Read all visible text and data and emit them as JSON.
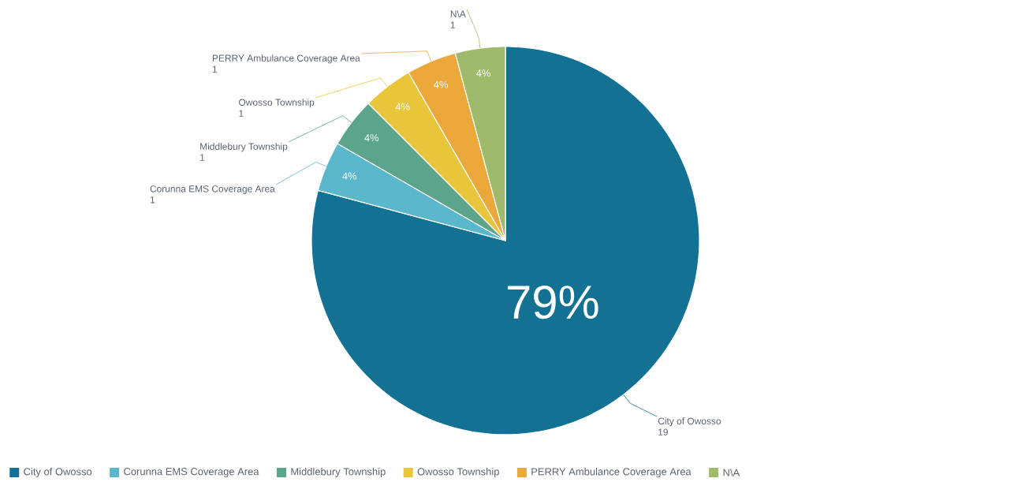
{
  "chart_data": {
    "type": "pie",
    "categories": [
      "City of Owosso",
      "Corunna EMS Coverage Area",
      "Middlebury Township",
      "Owosso Township",
      "PERRY Ambulance Coverage Area",
      "N\\A"
    ],
    "values": [
      19,
      1,
      1,
      1,
      1,
      1
    ],
    "annotations": [
      "79%",
      "4%",
      "4%",
      "4%",
      "4%",
      "4%"
    ],
    "colors": [
      "#137294",
      "#5bb8cc",
      "#5aa58c",
      "#e8c53a",
      "#eba83a",
      "#9fba6a"
    ],
    "data_labels": true,
    "value_labels": [
      "19",
      "1",
      "1",
      "1",
      "1",
      "1"
    ],
    "legend": "bottom"
  }
}
